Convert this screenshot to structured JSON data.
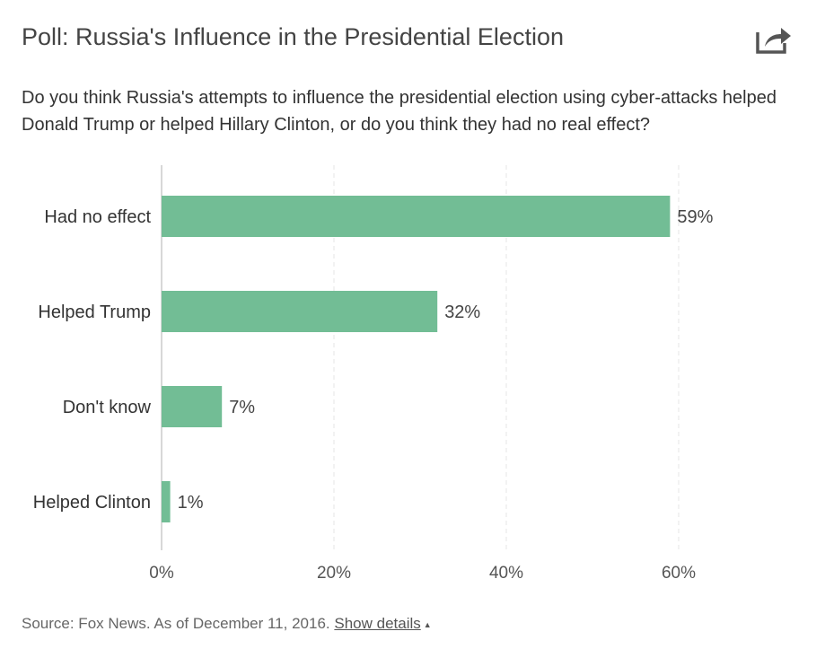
{
  "header": {
    "title": "Poll: Russia's Influence in the Presidential Election",
    "question": "Do you think Russia's attempts to influence the presidential election using cyber-attacks helped Donald Trump or helped Hillary Clinton, or do you think they had no real effect?",
    "share_icon": "share-icon"
  },
  "footer": {
    "source": "Source: Fox News. As of December 11, 2016.",
    "details_label": "Show details",
    "caret_icon": "caret-up-icon"
  },
  "colors": {
    "bar": "#72bd95",
    "grid": "#e6e6e6",
    "axis": "#cccccc"
  },
  "chart_data": {
    "type": "bar",
    "orientation": "horizontal",
    "categories": [
      "Had no effect",
      "Helped Trump",
      "Don't know",
      "Helped Clinton"
    ],
    "values": [
      59,
      32,
      7,
      1
    ],
    "value_labels": [
      "59%",
      "32%",
      "7%",
      "1%"
    ],
    "x_ticks": [
      0,
      20,
      40,
      60
    ],
    "x_tick_labels": [
      "0%",
      "20%",
      "40%",
      "60%"
    ],
    "xlim": [
      0,
      60
    ],
    "grid": true,
    "legend": "none"
  }
}
